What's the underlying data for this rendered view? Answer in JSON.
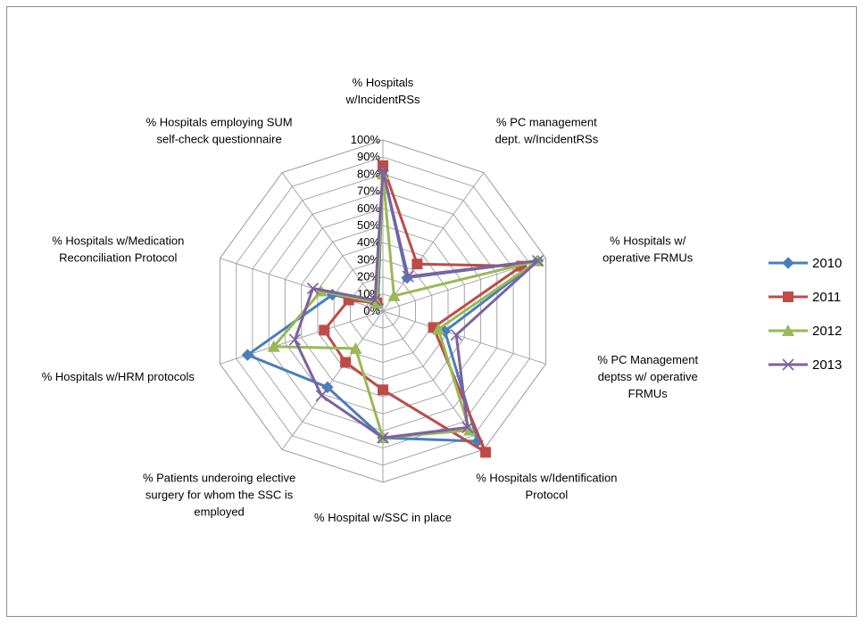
{
  "chart_data": {
    "type": "radar",
    "title": "",
    "categories": [
      "% Hospitals w/IncidentRSs",
      "% PC management dept. w/IncidentRSs",
      "% Hospitals w/ operative FRMUs",
      "% PC Management deptss w/  operative FRMUs",
      "% Hospitals w/Identification Protocol",
      "% Hospital w/SSC in place",
      "% Patients underoing elective surgery for whom the SSC is employed",
      "% Hospitals w/HRM protocols",
      "% Hospitals w/Medication Reconciliation Protocol",
      "% Hospitals employing SUM self-check questionnaire"
    ],
    "category_lines": [
      [
        "% Hospitals",
        "w/IncidentRSs"
      ],
      [
        "% PC management",
        "dept. w/IncidentRSs"
      ],
      [
        "% Hospitals w/",
        "operative FRMUs"
      ],
      [
        "% PC Management",
        "deptss w/  operative",
        "FRMUs"
      ],
      [
        "% Hospitals w/Identification",
        "Protocol"
      ],
      [
        "% Hospital w/SSC in place"
      ],
      [
        "% Patients underoing elective",
        "surgery for whom the SSC is",
        "employed"
      ],
      [
        "% Hospitals w/HRM protocols"
      ],
      [
        "% Hospitals w/Medication",
        "Reconciliation Protocol"
      ],
      [
        "% Hospitals employing SUM",
        "self-check questionnaire"
      ]
    ],
    "tick_labels": [
      "0%",
      "10%",
      "20%",
      "30%",
      "40%",
      "50%",
      "60%",
      "70%",
      "80%",
      "90%",
      "100%"
    ],
    "rlim": [
      0,
      100
    ],
    "grid": true,
    "legend_position": "right",
    "series": [
      {
        "name": "2010",
        "color": "#4a7ebb",
        "marker": "diamond",
        "values": [
          82,
          24,
          95,
          38,
          94,
          74,
          55,
          83,
          31,
          5
        ]
      },
      {
        "name": "2011",
        "color": "#be4b48",
        "marker": "square",
        "values": [
          85,
          34,
          85,
          31,
          102,
          46,
          37,
          36,
          21,
          6
        ]
      },
      {
        "name": "2012",
        "color": "#98b954",
        "marker": "triangle",
        "values": [
          80,
          11,
          95,
          34,
          86,
          74,
          27,
          67,
          38,
          6
        ]
      },
      {
        "name": "2013",
        "color": "#7d60a0",
        "marker": "x",
        "values": [
          82,
          25,
          95,
          45,
          84,
          74,
          61,
          54,
          43,
          8
        ]
      }
    ]
  }
}
